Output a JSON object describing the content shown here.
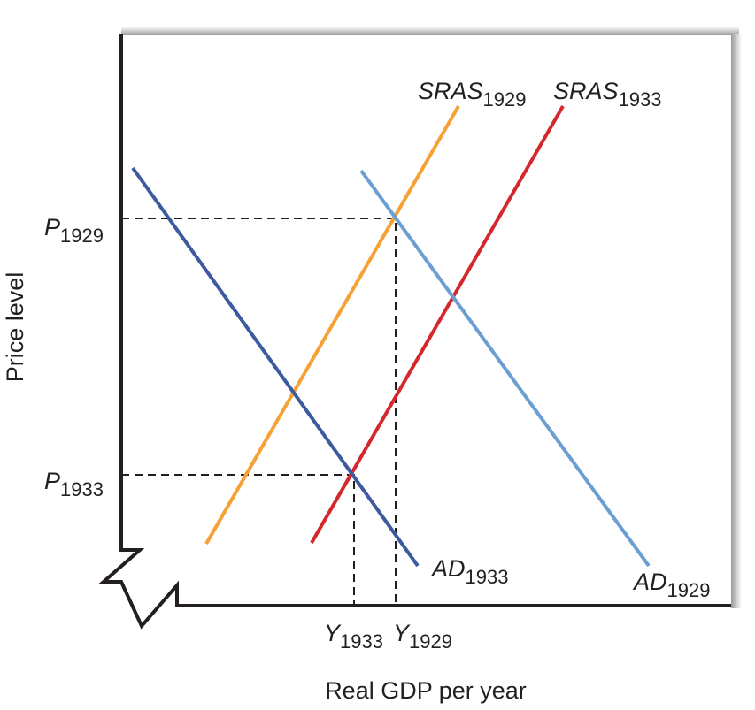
{
  "axes": {
    "x_label": "Real GDP per year",
    "y_label": "Price level"
  },
  "curves": [
    {
      "name": "SRAS",
      "sub": "1929"
    },
    {
      "name": "SRAS",
      "sub": "1933"
    },
    {
      "name": "AD",
      "sub": "1933"
    },
    {
      "name": "AD",
      "sub": "1929"
    }
  ],
  "price_levels": [
    {
      "name": "P",
      "sub": "1929"
    },
    {
      "name": "P",
      "sub": "1933"
    }
  ],
  "output_levels": [
    {
      "name": "Y",
      "sub": "1933"
    },
    {
      "name": "Y",
      "sub": "1929"
    }
  ]
}
